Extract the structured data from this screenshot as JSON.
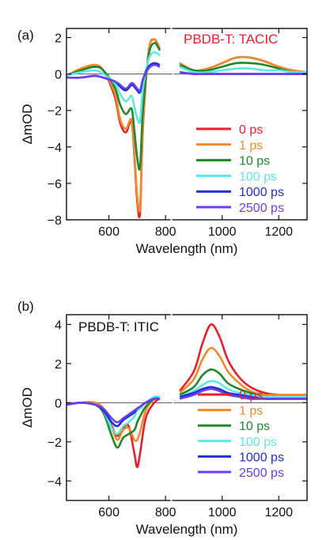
{
  "chart_data": [
    {
      "type": "line",
      "panel_label": "(a)",
      "title": "PBDB-T: TACIC",
      "title_color": "#e8202a",
      "xlabel": "Wavelength (nm)",
      "ylabel": "ΔmOD",
      "xlim": [
        450,
        1300
      ],
      "xbreak": [
        790,
        840
      ],
      "ylim": [
        -8,
        2.5
      ],
      "xticks": [
        600,
        800,
        1000,
        1200
      ],
      "yticks": [
        -8,
        -6,
        -4,
        -2,
        0,
        2
      ],
      "zero_line": true,
      "grid": false,
      "legend_position": "right",
      "series": [
        {
          "name": "0 ps",
          "color": "#e8202a",
          "x": [
            450,
            500,
            550,
            580,
            620,
            640,
            660,
            680,
            690,
            700,
            710,
            720,
            740,
            760,
            780,
            850,
            900,
            950,
            1000,
            1050,
            1100,
            1150,
            1200,
            1250,
            1300
          ],
          "y": [
            -0.1,
            0.2,
            0.4,
            0.2,
            -1.2,
            -2.7,
            -3.2,
            -2.6,
            -4.5,
            -7.0,
            -7.6,
            -3.0,
            1.2,
            1.9,
            1.3,
            0.6,
            0.2,
            0.3,
            0.6,
            0.9,
            0.9,
            0.7,
            0.4,
            0.2,
            0.1
          ]
        },
        {
          "name": "1 ps",
          "color": "#f28a2c",
          "x": [
            450,
            500,
            550,
            580,
            620,
            640,
            660,
            680,
            690,
            700,
            710,
            720,
            740,
            760,
            780,
            850,
            900,
            950,
            1000,
            1050,
            1100,
            1150,
            1200,
            1250,
            1300
          ],
          "y": [
            -0.1,
            0.3,
            0.5,
            0.2,
            -1.0,
            -2.5,
            -3.0,
            -2.5,
            -4.3,
            -6.7,
            -7.3,
            -2.8,
            1.2,
            1.9,
            1.4,
            0.6,
            0.2,
            0.3,
            0.6,
            0.9,
            0.9,
            0.7,
            0.4,
            0.2,
            0.1
          ]
        },
        {
          "name": "10 ps",
          "color": "#1d8a2a",
          "x": [
            450,
            500,
            550,
            580,
            620,
            640,
            660,
            680,
            690,
            700,
            710,
            720,
            740,
            760,
            780,
            850,
            900,
            950,
            1000,
            1050,
            1100,
            1150,
            1200,
            1250,
            1300
          ],
          "y": [
            -0.1,
            0.2,
            0.4,
            0.2,
            -0.7,
            -1.7,
            -2.2,
            -1.9,
            -3.1,
            -4.6,
            -5.1,
            -2.0,
            1.0,
            1.7,
            1.3,
            0.5,
            0.2,
            0.2,
            0.4,
            0.6,
            0.6,
            0.5,
            0.3,
            0.1,
            0.1
          ]
        },
        {
          "name": "100 ps",
          "color": "#5ce8e4",
          "x": [
            450,
            500,
            550,
            580,
            620,
            640,
            660,
            680,
            690,
            700,
            710,
            720,
            740,
            760,
            780,
            850,
            900,
            950,
            1000,
            1050,
            1100,
            1150,
            1200,
            1250,
            1300
          ],
          "y": [
            -0.1,
            0.1,
            0.2,
            0.0,
            -0.5,
            -1.1,
            -1.5,
            -1.2,
            -1.8,
            -2.4,
            -2.6,
            -0.8,
            0.8,
            1.2,
            1.0,
            0.4,
            0.1,
            0.1,
            0.2,
            0.3,
            0.3,
            0.2,
            0.2,
            0.1,
            0.1
          ]
        },
        {
          "name": "1000 ps",
          "color": "#1f2fd6",
          "x": [
            450,
            500,
            550,
            580,
            620,
            640,
            660,
            680,
            690,
            700,
            710,
            720,
            740,
            760,
            780,
            850,
            900,
            950,
            1000,
            1050,
            1100,
            1150,
            1200,
            1250,
            1300
          ],
          "y": [
            -0.2,
            -0.2,
            -0.1,
            -0.2,
            -0.4,
            -0.7,
            -0.9,
            -0.6,
            -0.7,
            -0.9,
            -1.0,
            -0.3,
            0.4,
            0.6,
            0.5,
            0.1,
            0.0,
            0.0,
            0.0,
            0.0,
            0.0,
            0.0,
            0.0,
            0.0,
            0.0
          ]
        },
        {
          "name": "2500 ps",
          "color": "#6a3df0",
          "x": [
            450,
            500,
            550,
            580,
            620,
            640,
            660,
            680,
            690,
            700,
            710,
            720,
            740,
            760,
            780,
            850,
            900,
            950,
            1000,
            1050,
            1100,
            1150,
            1200,
            1250,
            1300
          ],
          "y": [
            -0.2,
            -0.2,
            -0.1,
            -0.2,
            -0.4,
            -0.6,
            -0.8,
            -0.5,
            -0.6,
            -0.8,
            -0.9,
            -0.3,
            0.3,
            0.5,
            0.4,
            0.1,
            0.0,
            0.0,
            0.0,
            0.0,
            0.0,
            0.0,
            0.0,
            0.0,
            0.0
          ]
        }
      ]
    },
    {
      "type": "line",
      "panel_label": "(b)",
      "title": "PBDB-T: ITIC",
      "title_color": "#111111",
      "xlabel": "Wavelength (nm)",
      "ylabel": "ΔmOD",
      "xlim": [
        450,
        1300
      ],
      "xbreak": [
        790,
        840
      ],
      "ylim": [
        -5,
        4.5
      ],
      "xticks": [
        600,
        800,
        1000,
        1200
      ],
      "yticks": [
        -4,
        -2,
        0,
        2,
        4
      ],
      "zero_line": true,
      "grid": false,
      "legend_position": "right",
      "series": [
        {
          "name": "0 ps",
          "color": "#e8202a",
          "x": [
            450,
            500,
            550,
            580,
            610,
            630,
            650,
            670,
            690,
            700,
            710,
            730,
            760,
            780,
            850,
            900,
            930,
            960,
            990,
            1020,
            1060,
            1100,
            1150,
            1200,
            1250,
            1300
          ],
          "y": [
            -0.1,
            0.0,
            0.0,
            -0.3,
            -1.2,
            -1.7,
            -1.3,
            -1.2,
            -2.6,
            -3.3,
            -2.6,
            -0.8,
            0.0,
            0.2,
            0.6,
            1.6,
            3.0,
            4.0,
            3.4,
            2.2,
            1.3,
            0.8,
            0.5,
            0.4,
            0.4,
            0.4
          ]
        },
        {
          "name": "1 ps",
          "color": "#f28a2c",
          "x": [
            450,
            500,
            550,
            580,
            610,
            630,
            650,
            670,
            690,
            700,
            710,
            730,
            760,
            780,
            850,
            900,
            930,
            960,
            990,
            1020,
            1060,
            1100,
            1150,
            1200,
            1250,
            1300
          ],
          "y": [
            -0.1,
            0.0,
            0.0,
            -0.3,
            -1.3,
            -1.9,
            -1.4,
            -1.3,
            -1.9,
            -1.9,
            -1.5,
            -0.4,
            0.2,
            0.3,
            0.5,
            1.2,
            2.2,
            2.8,
            2.4,
            1.6,
            1.0,
            0.6,
            0.4,
            0.4,
            0.4,
            0.4
          ]
        },
        {
          "name": "10 ps",
          "color": "#1d8a2a",
          "x": [
            450,
            500,
            550,
            580,
            610,
            630,
            650,
            670,
            690,
            700,
            710,
            730,
            760,
            780,
            850,
            900,
            930,
            960,
            990,
            1020,
            1060,
            1100,
            1150,
            1200,
            1250,
            1300
          ],
          "y": [
            -0.1,
            0.0,
            -0.1,
            -0.5,
            -1.7,
            -2.3,
            -1.8,
            -1.6,
            -1.4,
            -1.0,
            -0.7,
            -0.2,
            0.2,
            0.3,
            0.4,
            0.8,
            1.4,
            1.7,
            1.5,
            1.0,
            0.7,
            0.5,
            0.3,
            0.3,
            0.3,
            0.3
          ]
        },
        {
          "name": "100 ps",
          "color": "#5ce8e4",
          "x": [
            450,
            500,
            550,
            580,
            610,
            630,
            650,
            670,
            690,
            700,
            710,
            730,
            760,
            780,
            850,
            900,
            930,
            960,
            990,
            1020,
            1060,
            1100,
            1150,
            1200,
            1250,
            1300
          ],
          "y": [
            -0.1,
            0.0,
            -0.1,
            -0.4,
            -1.3,
            -1.6,
            -1.2,
            -1.0,
            -0.7,
            -0.4,
            -0.3,
            0.0,
            0.3,
            0.3,
            0.3,
            0.6,
            0.9,
            1.1,
            1.0,
            0.7,
            0.5,
            0.4,
            0.3,
            0.3,
            0.3,
            0.3
          ]
        },
        {
          "name": "1000 ps",
          "color": "#1f2fd6",
          "x": [
            450,
            500,
            550,
            580,
            610,
            630,
            650,
            670,
            690,
            700,
            710,
            730,
            760,
            780,
            850,
            900,
            930,
            960,
            990,
            1020,
            1060,
            1100,
            1150,
            1200,
            1250,
            1300
          ],
          "y": [
            -0.1,
            0.0,
            -0.1,
            -0.4,
            -1.0,
            -1.2,
            -0.9,
            -0.7,
            -0.5,
            -0.3,
            -0.2,
            0.0,
            0.2,
            0.2,
            0.3,
            0.5,
            0.7,
            0.8,
            0.7,
            0.5,
            0.4,
            0.3,
            0.2,
            0.2,
            0.2,
            0.2
          ]
        },
        {
          "name": "2500 ps",
          "color": "#6a3df0",
          "x": [
            450,
            500,
            550,
            580,
            610,
            630,
            650,
            670,
            690,
            700,
            710,
            730,
            760,
            780,
            850,
            900,
            930,
            960,
            990,
            1020,
            1060,
            1100,
            1150,
            1200,
            1250,
            1300
          ],
          "y": [
            -0.1,
            0.0,
            -0.1,
            -0.3,
            -0.8,
            -1.0,
            -0.8,
            -0.6,
            -0.4,
            -0.3,
            -0.2,
            0.0,
            0.2,
            0.2,
            0.2,
            0.4,
            0.6,
            0.7,
            0.6,
            0.4,
            0.3,
            0.2,
            0.2,
            0.2,
            0.2,
            0.2
          ]
        }
      ]
    }
  ]
}
